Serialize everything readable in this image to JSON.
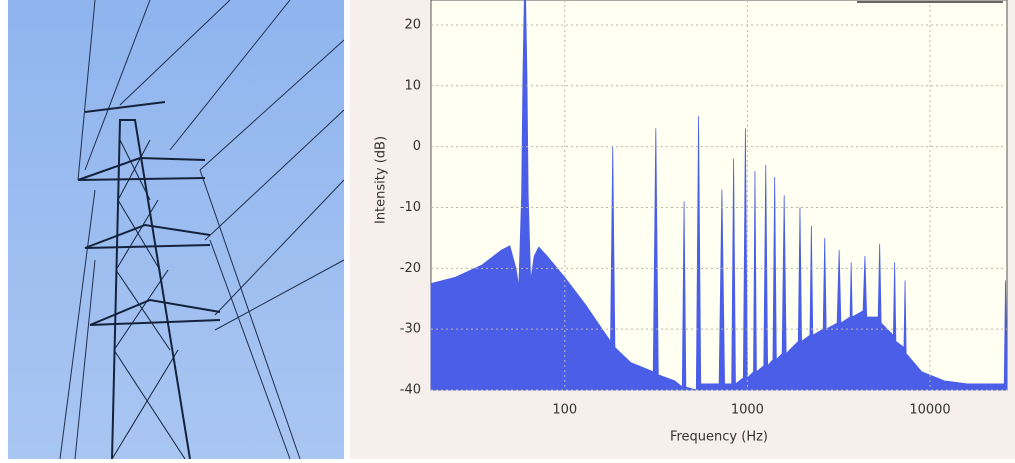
{
  "chart_data": {
    "type": "area",
    "x_label": "Frequency (Hz)",
    "y_label": "Intensity (dB)",
    "color": "#4a5ee8",
    "log_x": true,
    "grid": true,
    "xlim": [
      18.5,
      26400
    ],
    "ylim": [
      -40,
      24.1
    ],
    "xticks": [
      100,
      1000,
      10000
    ],
    "yticks": [
      -40,
      -30,
      -20,
      -10,
      0,
      10,
      20
    ],
    "x": [
      18.5,
      25,
      35,
      45,
      50,
      54,
      56,
      58,
      59,
      60,
      61,
      62,
      63,
      65,
      68,
      72,
      80,
      100,
      130,
      160,
      178,
      183,
      188,
      230,
      305,
      315,
      325,
      400,
      440,
      450,
      460,
      525,
      540,
      555,
      700,
      725,
      750,
      820,
      840,
      860,
      950,
      975,
      1000,
      1080,
      1100,
      1120,
      1230,
      1260,
      1290,
      1380,
      1410,
      1440,
      1550,
      1590,
      1630,
      1900,
      1940,
      1980,
      2200,
      2240,
      2280,
      2600,
      2650,
      2700,
      3100,
      3180,
      3250,
      3650,
      3700,
      3750,
      4300,
      4400,
      4500,
      5200,
      5300,
      5400,
      6300,
      6400,
      6500,
      7200,
      7300,
      7400,
      9000,
      12000,
      16000,
      20000,
      25500,
      25900,
      26400
    ],
    "values": [
      -22.5,
      -21.5,
      -19.5,
      -17,
      -16.3,
      -20,
      -23,
      -8,
      12,
      24.1,
      24.1,
      12,
      -8,
      -22,
      -18,
      -16.5,
      -18,
      -21.5,
      -26,
      -30,
      -32,
      0,
      -33,
      -35.5,
      -37,
      3,
      -37.5,
      -38.5,
      -39.5,
      -9,
      -39.5,
      -40,
      5,
      -39,
      -39,
      -7,
      -39,
      -39,
      -2,
      -39,
      -38,
      3,
      -38,
      -37,
      -4,
      -37,
      -36,
      -3,
      -36,
      -35,
      -5,
      -35,
      -34,
      -8,
      -34,
      -32,
      -10,
      -32,
      -31,
      -13,
      -31,
      -30,
      -15,
      -30,
      -29,
      -17,
      -29,
      -28,
      -19,
      -28,
      -27,
      -18,
      -28,
      -28,
      -16,
      -29,
      -31,
      -19,
      -32,
      -33,
      -22,
      -34,
      -37,
      -38.5,
      -39,
      -39,
      -39,
      -22,
      -39
    ]
  }
}
